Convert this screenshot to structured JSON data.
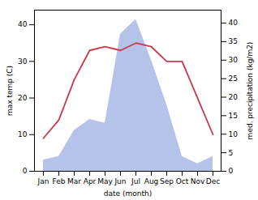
{
  "chart_data": {
    "type": "line",
    "categories": [
      "Jan",
      "Feb",
      "Mar",
      "Apr",
      "May",
      "Jun",
      "Jul",
      "Aug",
      "Sep",
      "Oct",
      "Nov",
      "Dec"
    ],
    "series": [
      {
        "type": "area",
        "axis": "y2",
        "color": "#a8b8e8",
        "values": [
          3,
          4,
          11,
          14,
          13,
          37,
          41,
          30,
          18,
          4,
          2,
          4
        ]
      },
      {
        "type": "line",
        "color": "#c9394a",
        "values": [
          9,
          14,
          25,
          33,
          34,
          33,
          35,
          34,
          30,
          30,
          20,
          10
        ]
      }
    ],
    "xlabel": "date (month)",
    "ylabel": "max temp (C)",
    "y2label": "med. precipitation (kg/m2)",
    "ylim": [
      0,
      44
    ],
    "yticks": [
      0,
      10,
      20,
      30,
      40
    ],
    "y2lim": [
      0,
      43.5
    ],
    "y2ticks": [
      0,
      5,
      10,
      15,
      20,
      25,
      30,
      35,
      40
    ],
    "grid": false
  }
}
